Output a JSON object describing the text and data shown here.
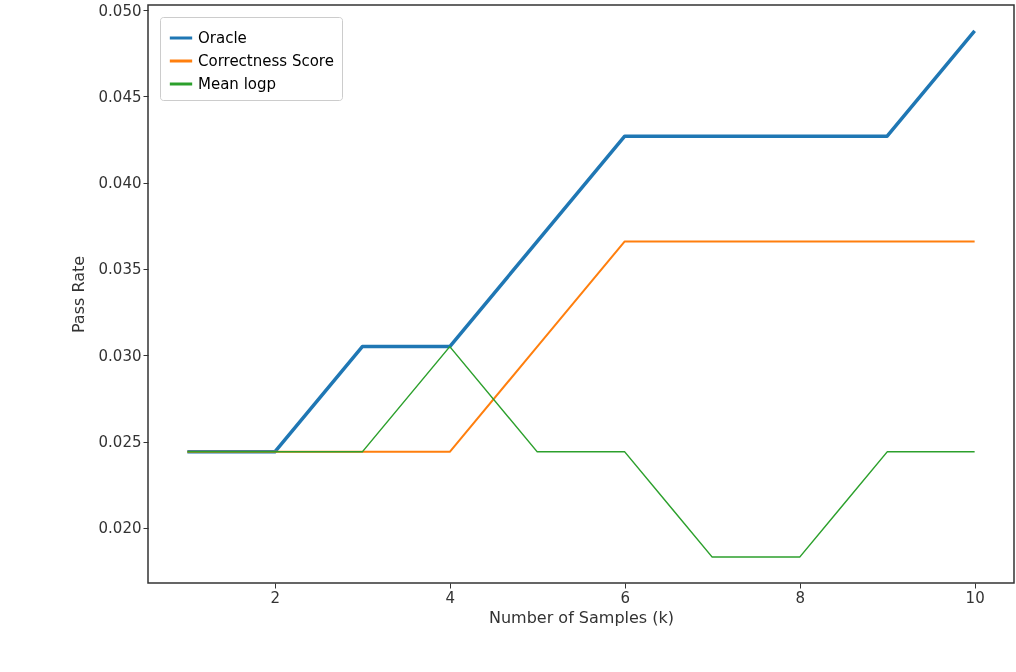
{
  "chart_data": {
    "type": "line",
    "xlabel": "Number of Samples (k)",
    "ylabel": "Pass Rate",
    "x": [
      1,
      2,
      3,
      4,
      5,
      6,
      7,
      8,
      9,
      10
    ],
    "series": [
      {
        "name": "Oracle",
        "color": "#1f77b4",
        "values": [
          0.0244,
          0.0244,
          0.0305,
          0.0305,
          0.0366,
          0.0427,
          0.0427,
          0.0427,
          0.0427,
          0.0488
        ]
      },
      {
        "name": "Correctness Score",
        "color": "#ff7f0e",
        "values": [
          0.0244,
          0.0244,
          0.0244,
          0.0244,
          0.0305,
          0.0366,
          0.0366,
          0.0366,
          0.0366,
          0.0366
        ]
      },
      {
        "name": "Mean logp",
        "color": "#2ca02c",
        "values": [
          0.0244,
          0.0244,
          0.0244,
          0.0305,
          0.0244,
          0.0244,
          0.0183,
          0.0183,
          0.0244,
          0.0244
        ]
      }
    ],
    "xlim": [
      0.55,
      10.45
    ],
    "xticks": [
      2,
      4,
      6,
      8,
      10
    ],
    "ylim": [
      0.0168,
      0.0503
    ],
    "yticks": [
      {
        "value": 0.02,
        "label": "0.020"
      },
      {
        "value": 0.025,
        "label": "0.025"
      },
      {
        "value": 0.03,
        "label": "0.030"
      },
      {
        "value": 0.035,
        "label": "0.035"
      },
      {
        "value": 0.04,
        "label": "0.040"
      },
      {
        "value": 0.045,
        "label": "0.045"
      },
      {
        "value": 0.05,
        "label": "0.050"
      }
    ],
    "grid": false,
    "legend": "top left",
    "marker": "none",
    "line_style": "solid"
  }
}
